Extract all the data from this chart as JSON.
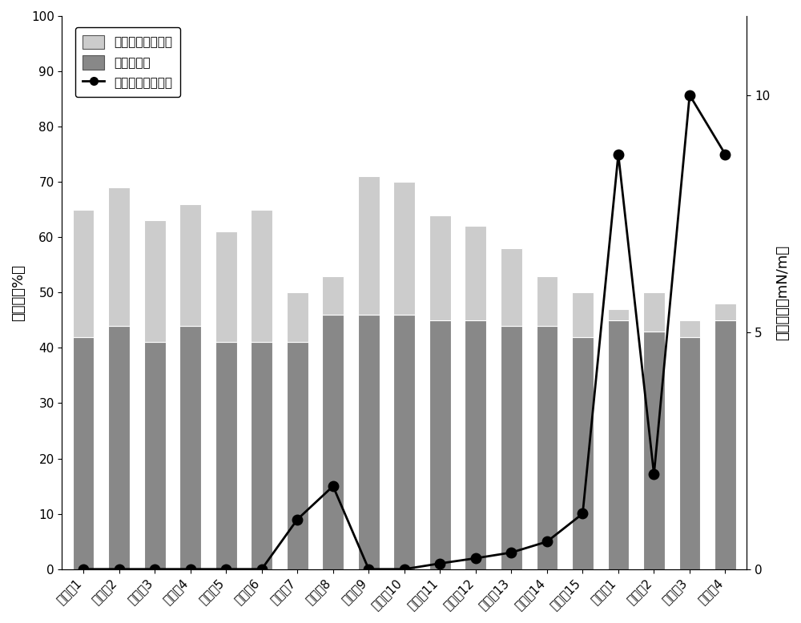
{
  "categories": [
    "实施例1",
    "实施例2",
    "实施例3",
    "实施例4",
    "实施例5",
    "实施例6",
    "实施例7",
    "实施例8",
    "实施例9",
    "实施例10",
    "实施例11",
    "实施例12",
    "实施例13",
    "实施例14",
    "实施例15",
    "对比例1",
    "对比例2",
    "对比例3",
    "对比例4"
  ],
  "water_drive": [
    42,
    44,
    41,
    44,
    41,
    41,
    41,
    46,
    46,
    46,
    45,
    45,
    44,
    44,
    42,
    45,
    43,
    42,
    45
  ],
  "nano_total": [
    65,
    69,
    63,
    66,
    61,
    65,
    50,
    53,
    71,
    70,
    64,
    62,
    58,
    53,
    50,
    47,
    50,
    45,
    48
  ],
  "line_values_mN": [
    0.0,
    0.0,
    0.0,
    0.0,
    0.0,
    0.0,
    1.05,
    1.75,
    0.0,
    0.0,
    0.12,
    0.23,
    0.35,
    0.58,
    1.17,
    8.75,
    2.0,
    10.0,
    8.75
  ],
  "left_ylim": [
    0,
    100
  ],
  "right_ylim": [
    0,
    11.67
  ],
  "right_yticks": [
    0,
    5,
    10
  ],
  "left_yticks": [
    0,
    10,
    20,
    30,
    40,
    50,
    60,
    70,
    80,
    90,
    100
  ],
  "bar_bottom_color": "#888888",
  "bar_top_color": "#cccccc",
  "bar_edge_color": "#ffffff",
  "line_color": "#000000",
  "ylabel_left": "采收率（%）",
  "ylabel_right": "界面张力（mN/m）",
  "legend_labels": [
    "纳米流体驱采收率",
    "水驱采收率",
    "纳米流体界面张力"
  ],
  "legend_top_color": "#cccccc",
  "legend_bottom_color": "#888888",
  "figsize": [
    10.0,
    7.78
  ],
  "bar_width": 0.6
}
